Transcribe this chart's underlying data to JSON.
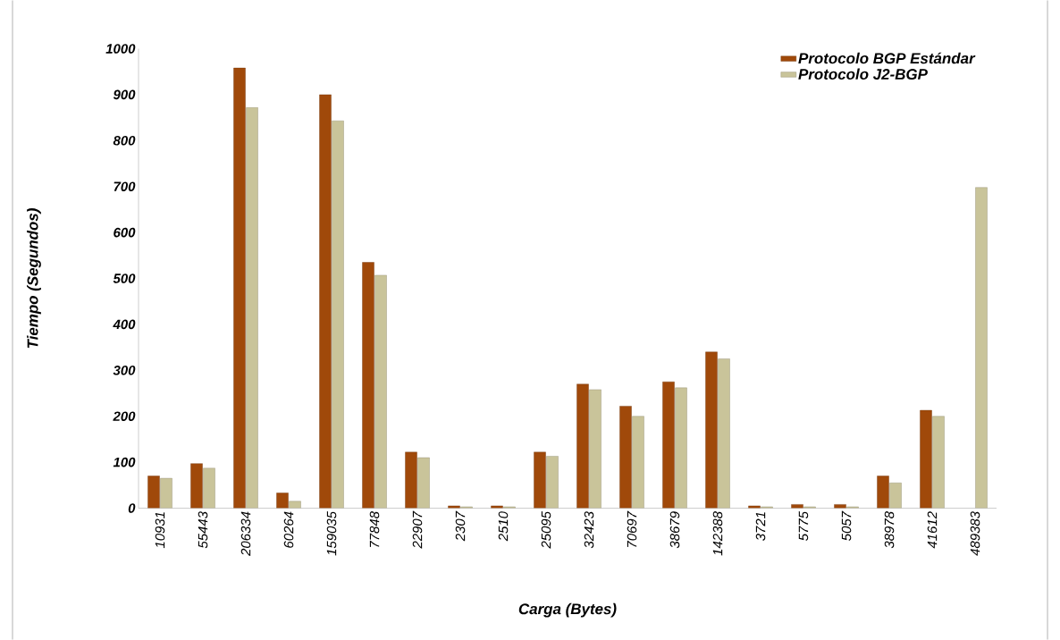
{
  "chart_data": {
    "type": "bar",
    "xlabel": "Carga (Bytes)",
    "ylabel": "Tiempo (Segundos)",
    "categories": [
      "10931",
      "55443",
      "206334",
      "60264",
      "159035",
      "77848",
      "22907",
      "2307",
      "2510",
      "25095",
      "32423",
      "70697",
      "38679",
      "142388",
      "3721",
      "5775",
      "5057",
      "38978",
      "41612",
      "489383"
    ],
    "series": [
      {
        "name": "Protocolo BGP Estándar",
        "color": "#a0490a",
        "values": [
          70,
          97,
          958,
          33,
          900,
          535,
          122,
          5,
          5,
          122,
          270,
          222,
          275,
          340,
          5,
          8,
          8,
          70,
          213,
          null
        ]
      },
      {
        "name": "Protocolo J2-BGP",
        "color": "#c9c49a",
        "values": [
          65,
          87,
          872,
          15,
          843,
          507,
          110,
          3,
          3,
          113,
          258,
          200,
          262,
          325,
          3,
          3,
          3,
          55,
          200,
          698
        ]
      }
    ],
    "ylim": [
      0,
      1000
    ],
    "yticks": [
      0,
      100,
      200,
      300,
      400,
      500,
      600,
      700,
      800,
      900,
      1000
    ],
    "legend": "top right",
    "grid": false
  }
}
